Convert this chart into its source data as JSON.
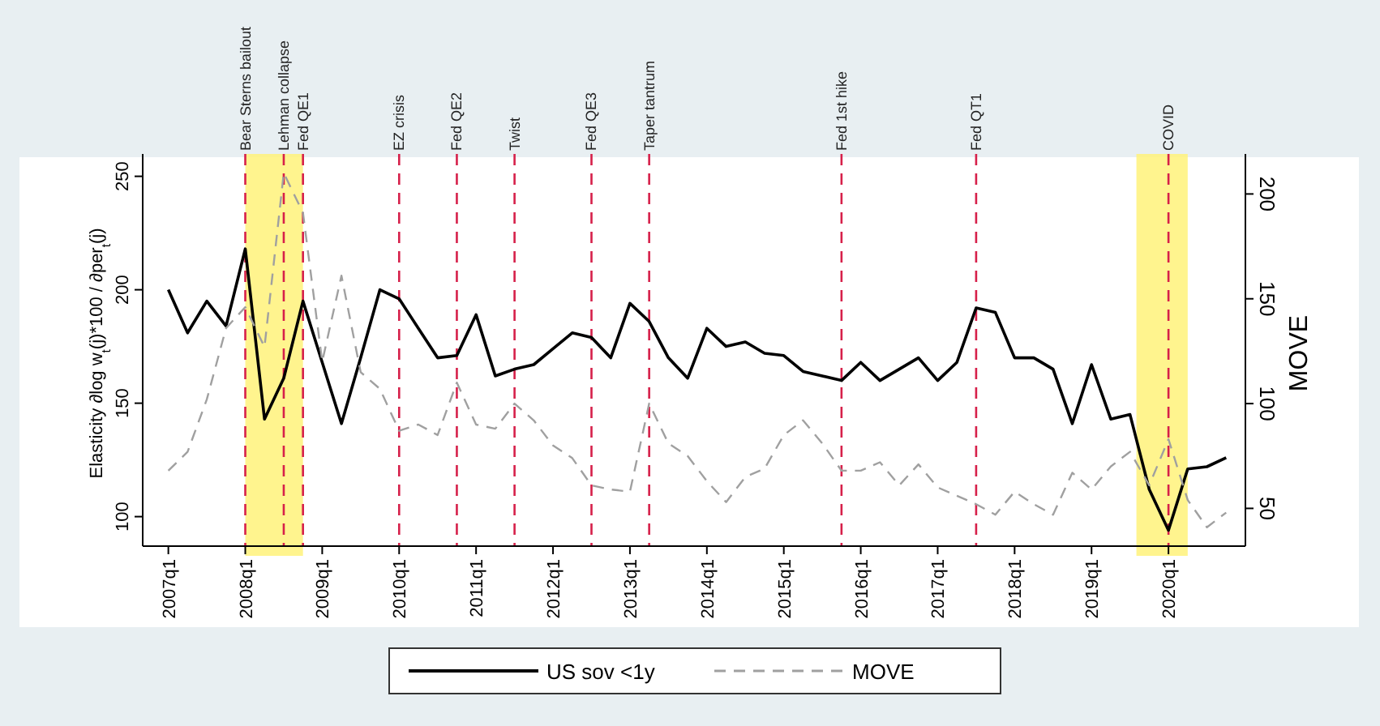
{
  "chart_data": {
    "type": "line",
    "ylabel": "Elasticity  ∂log w$_{t}$(j)*100 / ∂per$_{t}$(j)",
    "y2label": "MOVE",
    "x": [
      "2007-01",
      "2007-04",
      "2007-07",
      "2007-10",
      "2008-01",
      "2008-04",
      "2008-07",
      "2008-10",
      "2009-01",
      "2009-04",
      "2009-07",
      "2009-10",
      "2010-01",
      "2010-04",
      "2010-07",
      "2010-10",
      "2011-01",
      "2011-04",
      "2011-07",
      "2011-10",
      "2012-01",
      "2012-04",
      "2012-07",
      "2012-10",
      "2013-01",
      "2013-04",
      "2013-07",
      "2013-10",
      "2014-01",
      "2014-04",
      "2014-07",
      "2014-10",
      "2015-01",
      "2015-04",
      "2015-07",
      "2015-10",
      "2016-01",
      "2016-04",
      "2016-07",
      "2016-10",
      "2017-01",
      "2017-04",
      "2017-07",
      "2017-10",
      "2018-01",
      "2018-04",
      "2018-07",
      "2018-10",
      "2019-01",
      "2019-04",
      "2019-07",
      "2019-10",
      "2020-01",
      "2020-04",
      "2020-07",
      "2020-10"
    ],
    "series": [
      {
        "name": "US sov <1y",
        "color": "#000000",
        "line_style": "solid",
        "values": [
          200,
          181,
          195,
          184,
          218,
          143,
          161,
          195,
          168,
          141,
          170,
          200,
          196,
          183,
          170,
          171,
          189,
          162,
          165,
          167,
          174,
          181,
          179,
          170,
          194,
          186,
          170,
          161,
          183,
          175,
          177,
          172,
          171,
          164,
          162,
          160,
          168,
          160,
          165,
          170,
          160,
          168,
          192,
          190,
          170,
          170,
          165,
          141,
          167,
          143,
          145,
          112,
          94,
          121,
          122,
          126
        ]
      },
      {
        "name": "MOVE",
        "color": "#a0a0a0",
        "line_style": "dashed",
        "axis": "y2",
        "values": [
          68,
          77,
          102,
          136,
          146,
          127,
          210,
          191,
          120,
          161,
          115,
          107,
          87,
          90,
          85,
          110,
          90,
          88,
          100,
          92,
          80,
          74,
          61,
          59,
          58,
          100,
          81,
          75,
          63,
          53,
          65,
          69,
          85,
          92,
          81,
          68,
          68,
          72,
          61,
          71,
          60,
          56,
          52,
          47,
          58,
          52,
          47,
          67,
          59,
          70,
          77,
          61,
          83,
          54,
          41,
          48
        ]
      }
    ],
    "xlim": [
      "2006-09",
      "2021-01"
    ],
    "xticks": [
      {
        "value": "2007-01",
        "label": "2007q1"
      },
      {
        "value": "2008-01",
        "label": "2008q1"
      },
      {
        "value": "2009-01",
        "label": "2009q1"
      },
      {
        "value": "2010-01",
        "label": "2010q1"
      },
      {
        "value": "2011-01",
        "label": "2011q1"
      },
      {
        "value": "2012-01",
        "label": "2012q1"
      },
      {
        "value": "2013-01",
        "label": "2013q1"
      },
      {
        "value": "2014-01",
        "label": "2014q1"
      },
      {
        "value": "2015-01",
        "label": "2015q1"
      },
      {
        "value": "2016-01",
        "label": "2016q1"
      },
      {
        "value": "2017-01",
        "label": "2017q1"
      },
      {
        "value": "2018-01",
        "label": "2018q1"
      },
      {
        "value": "2019-01",
        "label": "2019q1"
      },
      {
        "value": "2020-01",
        "label": "2020q1"
      }
    ],
    "ylim": [
      87,
      257
    ],
    "yticks": [
      100,
      150,
      200,
      250
    ],
    "y2lim": [
      32,
      216
    ],
    "y2ticks": [
      50,
      100,
      150,
      200
    ],
    "ref_lines": [
      {
        "axis": "x",
        "value": "2008-01",
        "label": "Bear Sterns bailout",
        "color": "#d6204a",
        "line_style": "dashed"
      },
      {
        "axis": "x",
        "value": "2008-07",
        "label": "Lehman collapse",
        "color": "#d6204a",
        "line_style": "dashed"
      },
      {
        "axis": "x",
        "value": "2008-10",
        "label": "Fed QE1",
        "color": "#d6204a",
        "line_style": "dashed"
      },
      {
        "axis": "x",
        "value": "2010-01",
        "label": "EZ crisis",
        "color": "#d6204a",
        "line_style": "dashed"
      },
      {
        "axis": "x",
        "value": "2010-10",
        "label": "Fed QE2",
        "color": "#d6204a",
        "line_style": "dashed"
      },
      {
        "axis": "x",
        "value": "2011-07",
        "label": "Twist",
        "color": "#d6204a",
        "line_style": "dashed"
      },
      {
        "axis": "x",
        "value": "2012-07",
        "label": "Fed QE3",
        "color": "#d6204a",
        "line_style": "dashed"
      },
      {
        "axis": "x",
        "value": "2013-04",
        "label": "Taper tantrum",
        "color": "#d6204a",
        "line_style": "dashed"
      },
      {
        "axis": "x",
        "value": "2015-10",
        "label": "Fed 1st hike",
        "color": "#d6204a",
        "line_style": "dashed"
      },
      {
        "axis": "x",
        "value": "2017-07",
        "label": "Fed QT1",
        "color": "#d6204a",
        "line_style": "dashed"
      },
      {
        "axis": "x",
        "value": "2020-01",
        "label": "COVID",
        "color": "#d6204a",
        "line_style": "dashed"
      }
    ],
    "bands": [
      {
        "axis": "x",
        "from": "2008-01",
        "to": "2008-10",
        "color": "#fff27a"
      },
      {
        "axis": "x",
        "from": "2019-08",
        "to": "2020-04",
        "color": "#fff27a"
      }
    ],
    "legend": "bottom",
    "grid": false
  }
}
